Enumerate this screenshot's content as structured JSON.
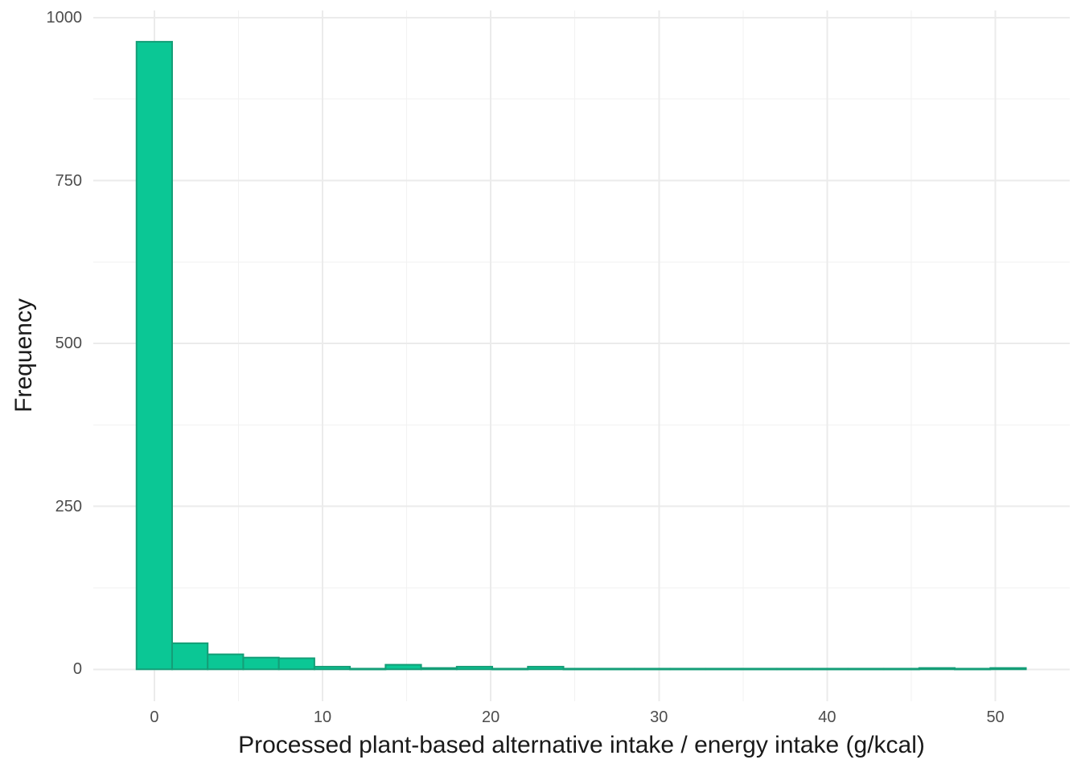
{
  "figure": {
    "background": "#ffffff"
  },
  "chart_data": {
    "type": "histogram",
    "title": "",
    "xlabel": "Processed plant-based alternative intake / energy intake (g/kcal)",
    "ylabel": "Frequency",
    "bins": {
      "start": -1.06,
      "width": 2.115,
      "centers": [
        0,
        2.12,
        4.23,
        6.35,
        8.46,
        10.58,
        12.69,
        14.81,
        16.92,
        19.04,
        21.15,
        23.27,
        25.38,
        27.5,
        29.61,
        31.73,
        33.84,
        35.96,
        38.07,
        40.19,
        42.3,
        44.42,
        46.53,
        48.65,
        50.76
      ],
      "counts": [
        963,
        40,
        23,
        18,
        17,
        4,
        1,
        7,
        2,
        4,
        1,
        4,
        1,
        1,
        1,
        1,
        1,
        1,
        1,
        1,
        1,
        1,
        2,
        1,
        2
      ]
    },
    "x_axis": {
      "range": [
        -3.63,
        54.42
      ],
      "tick_values": [
        0,
        10,
        20,
        30,
        40,
        50
      ],
      "tick_labels": [
        "0",
        "10",
        "20",
        "30",
        "40",
        "50"
      ],
      "minor_tick_values": [
        5,
        15,
        25,
        35,
        45
      ]
    },
    "y_axis": {
      "range": [
        -49,
        1011
      ],
      "tick_values": [
        0,
        250,
        500,
        750,
        1000
      ],
      "tick_labels": [
        "0",
        "250",
        "500",
        "750",
        "1000"
      ],
      "minor_tick_values": [
        125,
        375,
        625,
        875
      ]
    },
    "grid": "major-and-minor",
    "legend": false,
    "colors": {
      "bar_fill": "#0bc795",
      "bar_stroke": "#149e77",
      "grid_major": "#ebebeb",
      "grid_minor": "#f2f2f2",
      "tick_label": "#4d4d4d",
      "axis_title": "#1a1a1a",
      "background": "#ffffff"
    }
  }
}
